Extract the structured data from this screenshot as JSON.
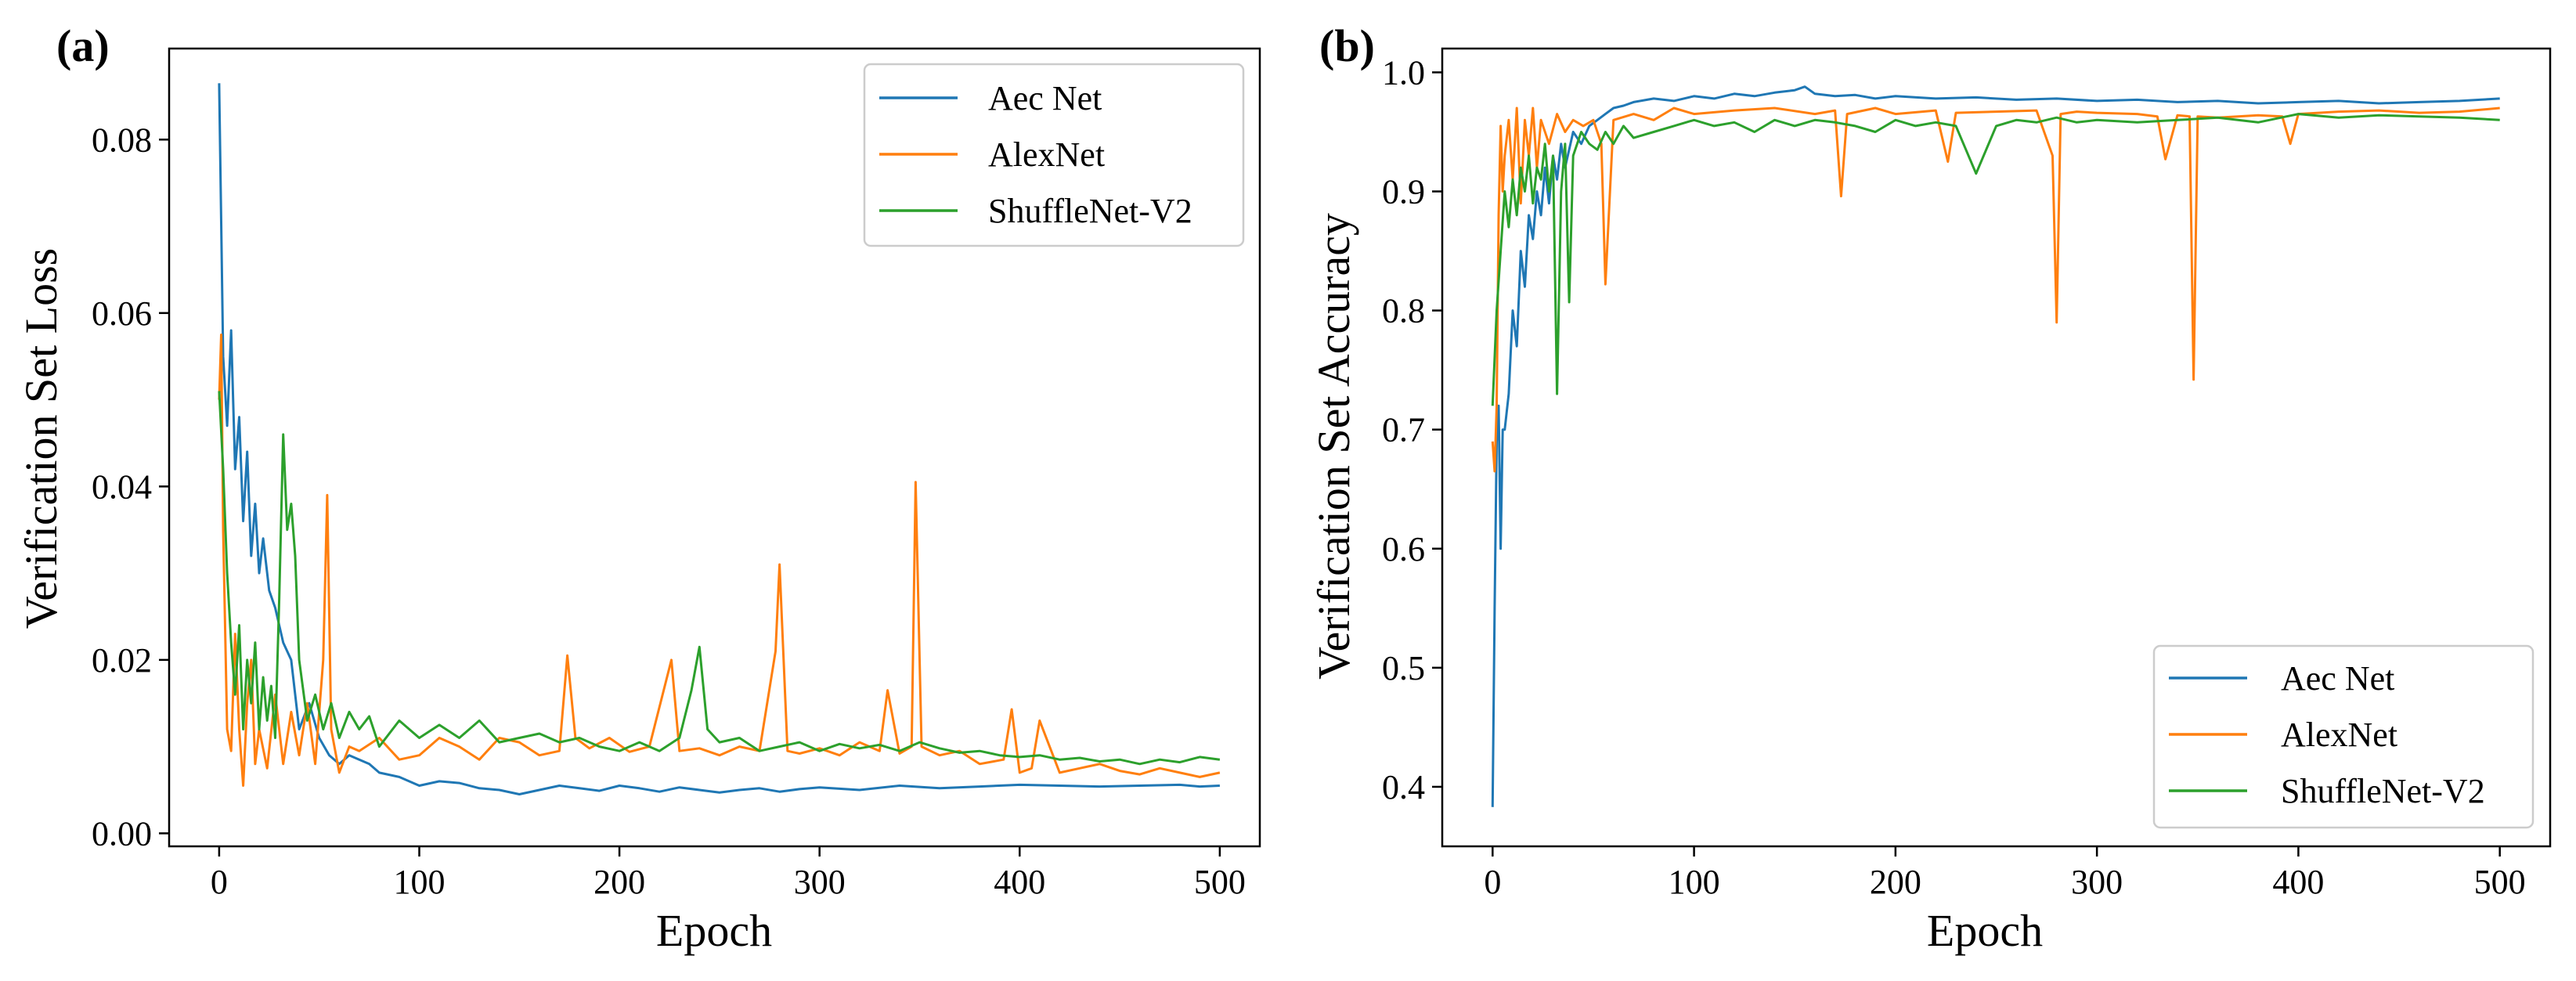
{
  "figure": {
    "background": "#ffffff"
  },
  "chart_data": [
    {
      "panel_label": "(a)",
      "type": "line",
      "xlabel": "Epoch",
      "ylabel": "Verification Set Loss",
      "xlim": [
        -25,
        520
      ],
      "ylim": [
        -0.0015,
        0.0905
      ],
      "xticks": [
        0,
        100,
        200,
        300,
        400,
        500
      ],
      "xtick_labels": [
        "0",
        "100",
        "200",
        "300",
        "400",
        "500"
      ],
      "yticks": [
        0.0,
        0.02,
        0.04,
        0.06,
        0.08
      ],
      "ytick_labels": [
        "0.00",
        "0.02",
        "0.04",
        "0.06",
        "0.08"
      ],
      "grid": false,
      "legend": {
        "position": "top-right"
      },
      "series": [
        {
          "name": "Aec Net",
          "color": "#1f77b4",
          "x": [
            0,
            2,
            4,
            6,
            8,
            10,
            12,
            14,
            16,
            18,
            20,
            22,
            25,
            28,
            32,
            36,
            40,
            45,
            50,
            55,
            60,
            65,
            70,
            75,
            80,
            90,
            100,
            110,
            120,
            130,
            140,
            150,
            160,
            170,
            180,
            190,
            200,
            210,
            220,
            230,
            240,
            250,
            260,
            270,
            280,
            290,
            300,
            320,
            340,
            360,
            380,
            400,
            420,
            440,
            460,
            480,
            490,
            500
          ],
          "y": [
            0.0865,
            0.055,
            0.047,
            0.058,
            0.042,
            0.048,
            0.036,
            0.044,
            0.032,
            0.038,
            0.03,
            0.034,
            0.028,
            0.026,
            0.022,
            0.02,
            0.012,
            0.015,
            0.011,
            0.009,
            0.008,
            0.009,
            0.0085,
            0.008,
            0.007,
            0.0065,
            0.0055,
            0.006,
            0.0058,
            0.0052,
            0.005,
            0.0045,
            0.005,
            0.0055,
            0.0052,
            0.0049,
            0.0055,
            0.0052,
            0.0048,
            0.0053,
            0.005,
            0.0047,
            0.005,
            0.0052,
            0.0048,
            0.0051,
            0.0053,
            0.005,
            0.0055,
            0.0052,
            0.0054,
            0.0056,
            0.0055,
            0.0054,
            0.0055,
            0.0056,
            0.0054,
            0.0055
          ]
        },
        {
          "name": "AlexNet",
          "color": "#ff7f0e",
          "x": [
            0,
            1,
            2,
            4,
            6,
            8,
            10,
            12,
            14,
            16,
            18,
            20,
            24,
            28,
            32,
            36,
            40,
            44,
            48,
            52,
            54,
            56,
            60,
            65,
            70,
            80,
            90,
            100,
            110,
            120,
            130,
            140,
            150,
            160,
            170,
            174,
            178,
            185,
            195,
            205,
            215,
            226,
            230,
            240,
            250,
            260,
            270,
            278,
            280,
            284,
            290,
            300,
            310,
            320,
            330,
            334,
            340,
            346,
            348,
            351,
            360,
            370,
            380,
            392,
            396,
            400,
            406,
            410,
            420,
            430,
            440,
            450,
            460,
            470,
            480,
            490,
            500
          ],
          "y": [
            0.05,
            0.0575,
            0.035,
            0.012,
            0.0095,
            0.023,
            0.012,
            0.0055,
            0.015,
            0.02,
            0.008,
            0.012,
            0.0075,
            0.016,
            0.008,
            0.014,
            0.009,
            0.015,
            0.008,
            0.02,
            0.039,
            0.012,
            0.007,
            0.01,
            0.0095,
            0.011,
            0.0085,
            0.009,
            0.011,
            0.01,
            0.0085,
            0.011,
            0.0105,
            0.009,
            0.0095,
            0.0205,
            0.011,
            0.0098,
            0.011,
            0.0094,
            0.01,
            0.02,
            0.0095,
            0.0098,
            0.009,
            0.01,
            0.0095,
            0.021,
            0.031,
            0.0095,
            0.0092,
            0.0098,
            0.009,
            0.0105,
            0.0095,
            0.0165,
            0.0092,
            0.01,
            0.0405,
            0.01,
            0.009,
            0.0095,
            0.008,
            0.0085,
            0.0143,
            0.007,
            0.0075,
            0.013,
            0.007,
            0.0075,
            0.008,
            0.0072,
            0.0068,
            0.0075,
            0.007,
            0.0065,
            0.007
          ]
        },
        {
          "name": "ShuffleNet-V2",
          "color": "#2ca02c",
          "x": [
            0,
            2,
            4,
            6,
            8,
            10,
            12,
            14,
            16,
            18,
            20,
            22,
            24,
            26,
            28,
            30,
            32,
            34,
            36,
            38,
            40,
            44,
            48,
            52,
            56,
            60,
            65,
            70,
            75,
            80,
            90,
            100,
            110,
            120,
            130,
            140,
            150,
            160,
            170,
            180,
            190,
            200,
            210,
            220,
            230,
            236,
            240,
            244,
            250,
            260,
            270,
            280,
            290,
            300,
            310,
            320,
            330,
            340,
            350,
            360,
            370,
            380,
            390,
            400,
            410,
            420,
            430,
            440,
            450,
            460,
            470,
            480,
            490,
            500
          ],
          "y": [
            0.051,
            0.042,
            0.03,
            0.022,
            0.016,
            0.024,
            0.012,
            0.02,
            0.015,
            0.022,
            0.012,
            0.018,
            0.013,
            0.017,
            0.011,
            0.027,
            0.046,
            0.035,
            0.038,
            0.032,
            0.02,
            0.013,
            0.016,
            0.012,
            0.015,
            0.011,
            0.014,
            0.012,
            0.0135,
            0.01,
            0.013,
            0.011,
            0.0125,
            0.011,
            0.013,
            0.0105,
            0.011,
            0.0115,
            0.0105,
            0.011,
            0.01,
            0.0095,
            0.0105,
            0.0095,
            0.011,
            0.0165,
            0.0215,
            0.012,
            0.0105,
            0.011,
            0.0095,
            0.01,
            0.0105,
            0.0095,
            0.0103,
            0.0098,
            0.0102,
            0.0095,
            0.0105,
            0.0098,
            0.0093,
            0.0095,
            0.009,
            0.0088,
            0.009,
            0.0085,
            0.0087,
            0.0083,
            0.0085,
            0.008,
            0.0085,
            0.0082,
            0.0088,
            0.0085
          ]
        }
      ]
    },
    {
      "panel_label": "(b)",
      "type": "line",
      "xlabel": "Epoch",
      "ylabel": "Verification Set Accuracy",
      "xlim": [
        -25,
        525
      ],
      "ylim": [
        0.35,
        1.02
      ],
      "xticks": [
        0,
        100,
        200,
        300,
        400,
        500
      ],
      "xtick_labels": [
        "0",
        "100",
        "200",
        "300",
        "400",
        "500"
      ],
      "yticks": [
        0.4,
        0.5,
        0.6,
        0.7,
        0.8,
        0.9,
        1.0
      ],
      "ytick_labels": [
        "0.4",
        "0.5",
        "0.6",
        "0.7",
        "0.8",
        "0.9",
        "1.0"
      ],
      "grid": false,
      "legend": {
        "position": "bottom-right"
      },
      "series": [
        {
          "name": "Aec Net",
          "color": "#1f77b4",
          "x": [
            0,
            1,
            2,
            3,
            4,
            5,
            6,
            8,
            10,
            12,
            14,
            16,
            18,
            20,
            22,
            24,
            26,
            28,
            30,
            32,
            34,
            36,
            40,
            44,
            48,
            52,
            56,
            60,
            65,
            70,
            80,
            90,
            100,
            110,
            120,
            130,
            140,
            150,
            155,
            160,
            170,
            180,
            190,
            200,
            220,
            240,
            260,
            280,
            300,
            320,
            340,
            360,
            380,
            400,
            420,
            440,
            460,
            480,
            500
          ],
          "y": [
            0.383,
            0.55,
            0.69,
            0.72,
            0.6,
            0.7,
            0.7,
            0.73,
            0.8,
            0.77,
            0.85,
            0.82,
            0.88,
            0.86,
            0.9,
            0.88,
            0.92,
            0.89,
            0.93,
            0.91,
            0.94,
            0.92,
            0.95,
            0.94,
            0.955,
            0.96,
            0.965,
            0.97,
            0.972,
            0.975,
            0.978,
            0.976,
            0.98,
            0.978,
            0.982,
            0.98,
            0.983,
            0.985,
            0.988,
            0.982,
            0.98,
            0.981,
            0.978,
            0.98,
            0.978,
            0.979,
            0.977,
            0.978,
            0.976,
            0.977,
            0.975,
            0.976,
            0.974,
            0.975,
            0.976,
            0.974,
            0.975,
            0.976,
            0.978
          ]
        },
        {
          "name": "AlexNet",
          "color": "#ff7f0e",
          "x": [
            0,
            1,
            2,
            3,
            4,
            5,
            6,
            8,
            10,
            12,
            14,
            16,
            18,
            20,
            22,
            24,
            28,
            32,
            36,
            40,
            45,
            50,
            54,
            56,
            60,
            70,
            80,
            90,
            100,
            120,
            140,
            160,
            170,
            173,
            176,
            190,
            200,
            220,
            226,
            230,
            250,
            270,
            278,
            280,
            282,
            290,
            300,
            320,
            330,
            334,
            340,
            346,
            348,
            350,
            360,
            380,
            392,
            396,
            400,
            420,
            440,
            460,
            480,
            500
          ],
          "y": [
            0.69,
            0.665,
            0.72,
            0.88,
            0.955,
            0.9,
            0.93,
            0.96,
            0.91,
            0.97,
            0.89,
            0.96,
            0.93,
            0.97,
            0.92,
            0.96,
            0.94,
            0.965,
            0.95,
            0.96,
            0.955,
            0.96,
            0.94,
            0.822,
            0.96,
            0.965,
            0.96,
            0.97,
            0.965,
            0.968,
            0.97,
            0.965,
            0.968,
            0.896,
            0.965,
            0.97,
            0.965,
            0.968,
            0.925,
            0.966,
            0.967,
            0.968,
            0.93,
            0.79,
            0.965,
            0.967,
            0.966,
            0.965,
            0.963,
            0.927,
            0.964,
            0.963,
            0.742,
            0.963,
            0.962,
            0.964,
            0.963,
            0.94,
            0.965,
            0.967,
            0.968,
            0.966,
            0.967,
            0.97
          ]
        },
        {
          "name": "ShuffleNet-V2",
          "color": "#2ca02c",
          "x": [
            0,
            2,
            4,
            6,
            8,
            10,
            12,
            14,
            16,
            18,
            20,
            22,
            24,
            26,
            28,
            30,
            32,
            34,
            36,
            38,
            40,
            44,
            48,
            52,
            56,
            60,
            65,
            70,
            80,
            90,
            100,
            110,
            120,
            130,
            140,
            150,
            160,
            170,
            180,
            190,
            200,
            210,
            220,
            230,
            240,
            250,
            260,
            270,
            280,
            290,
            300,
            320,
            340,
            360,
            380,
            400,
            420,
            440,
            460,
            480,
            500
          ],
          "y": [
            0.72,
            0.8,
            0.85,
            0.9,
            0.87,
            0.91,
            0.88,
            0.92,
            0.9,
            0.93,
            0.89,
            0.92,
            0.91,
            0.94,
            0.9,
            0.93,
            0.73,
            0.9,
            0.94,
            0.807,
            0.93,
            0.95,
            0.94,
            0.935,
            0.95,
            0.94,
            0.955,
            0.945,
            0.95,
            0.955,
            0.96,
            0.955,
            0.958,
            0.95,
            0.96,
            0.955,
            0.96,
            0.958,
            0.955,
            0.95,
            0.96,
            0.955,
            0.958,
            0.955,
            0.915,
            0.955,
            0.96,
            0.958,
            0.962,
            0.958,
            0.96,
            0.958,
            0.96,
            0.962,
            0.958,
            0.965,
            0.962,
            0.964,
            0.963,
            0.962,
            0.96
          ]
        }
      ]
    }
  ]
}
